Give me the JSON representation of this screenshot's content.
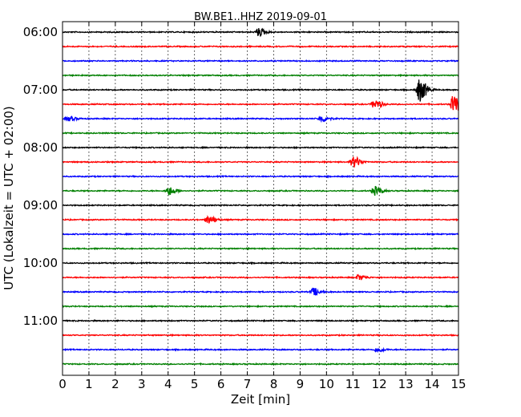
{
  "chart_data": {
    "type": "line",
    "title": "BW.BE1..HHZ 2019-09-01",
    "xlabel": "Zeit  [min]",
    "ylabel": "UTC (Lokalzeit = UTC + 02:00)",
    "xlim": [
      0,
      15
    ],
    "x_ticks": [
      "0",
      "1",
      "2",
      "3",
      "4",
      "5",
      "6",
      "7",
      "8",
      "9",
      "10",
      "11",
      "12",
      "13",
      "14",
      "15"
    ],
    "y_ticks": [
      "06:00",
      "07:00",
      "08:00",
      "09:00",
      "10:00",
      "11:00"
    ],
    "grid": "vertical dotted",
    "trace_interval_min": 15,
    "colors": [
      "#000000",
      "#ff0000",
      "#0000ff",
      "#008000"
    ],
    "traces": [
      {
        "start": "06:00",
        "color": "#000000",
        "events": [
          {
            "t": 7.4,
            "amp": 0.55
          }
        ]
      },
      {
        "start": "06:15",
        "color": "#ff0000",
        "events": []
      },
      {
        "start": "06:30",
        "color": "#0000ff",
        "events": []
      },
      {
        "start": "06:45",
        "color": "#008000",
        "events": []
      },
      {
        "start": "07:00",
        "color": "#000000",
        "events": [
          {
            "t": 13.5,
            "amp": 1.6
          }
        ]
      },
      {
        "start": "07:15",
        "color": "#ff0000",
        "events": [
          {
            "t": 11.8,
            "amp": 0.6
          },
          {
            "t": 14.8,
            "amp": 1.3
          }
        ]
      },
      {
        "start": "07:30",
        "color": "#0000ff",
        "events": [
          {
            "t": 0.2,
            "amp": 0.3
          },
          {
            "t": 9.8,
            "amp": 0.45
          }
        ]
      },
      {
        "start": "07:45",
        "color": "#008000",
        "events": []
      },
      {
        "start": "08:00",
        "color": "#000000",
        "events": []
      },
      {
        "start": "08:15",
        "color": "#ff0000",
        "events": [
          {
            "t": 11.0,
            "amp": 0.75
          }
        ]
      },
      {
        "start": "08:30",
        "color": "#0000ff",
        "events": []
      },
      {
        "start": "08:45",
        "color": "#008000",
        "events": [
          {
            "t": 4.0,
            "amp": 0.6
          },
          {
            "t": 11.8,
            "amp": 0.6
          }
        ]
      },
      {
        "start": "09:00",
        "color": "#000000",
        "events": []
      },
      {
        "start": "09:15",
        "color": "#ff0000",
        "events": [
          {
            "t": 5.5,
            "amp": 0.55
          }
        ]
      },
      {
        "start": "09:30",
        "color": "#0000ff",
        "events": []
      },
      {
        "start": "09:45",
        "color": "#008000",
        "events": []
      },
      {
        "start": "10:00",
        "color": "#000000",
        "events": []
      },
      {
        "start": "10:15",
        "color": "#ff0000",
        "events": [
          {
            "t": 11.2,
            "amp": 0.35
          }
        ]
      },
      {
        "start": "10:30",
        "color": "#0000ff",
        "events": [
          {
            "t": 9.5,
            "amp": 0.5
          }
        ]
      },
      {
        "start": "10:45",
        "color": "#008000",
        "events": []
      },
      {
        "start": "11:00",
        "color": "#000000",
        "events": []
      },
      {
        "start": "11:15",
        "color": "#ff0000",
        "events": []
      },
      {
        "start": "11:30",
        "color": "#0000ff",
        "events": [
          {
            "t": 11.9,
            "amp": 0.3
          }
        ]
      },
      {
        "start": "11:45",
        "color": "#008000",
        "events": []
      }
    ]
  }
}
